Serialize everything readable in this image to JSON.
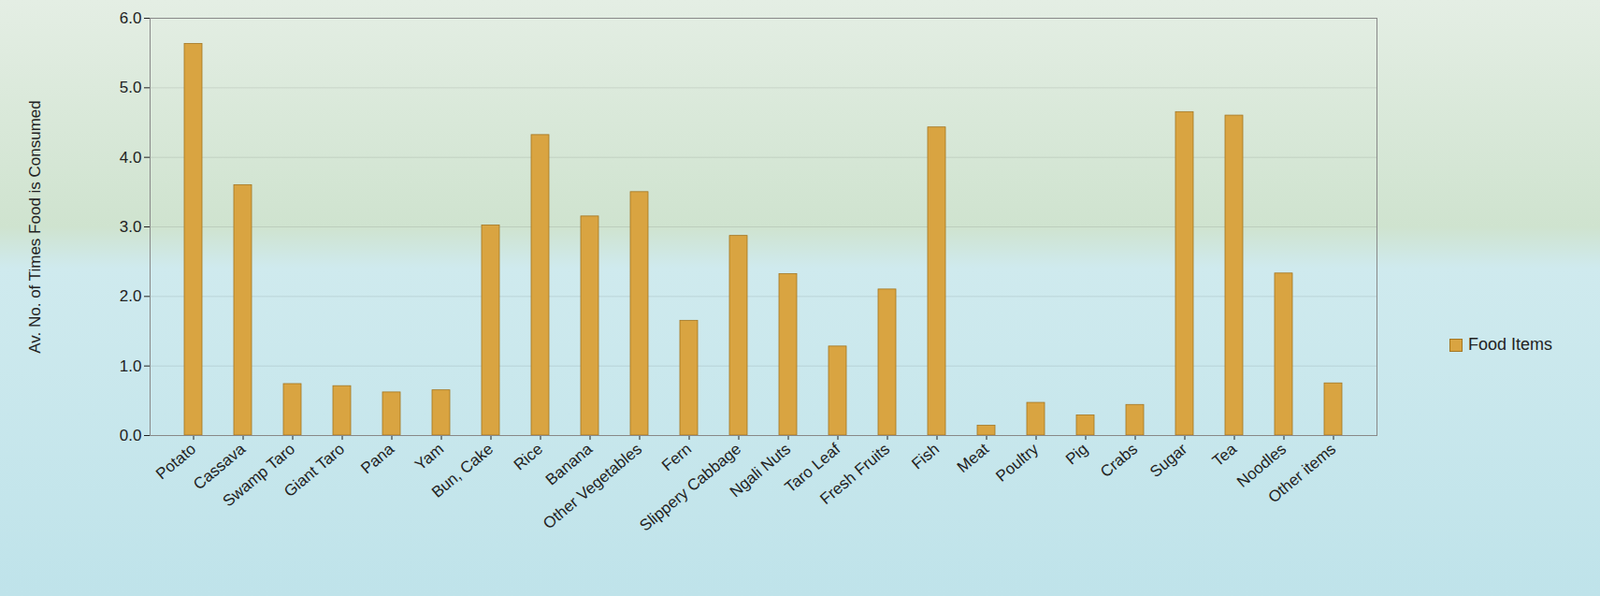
{
  "chart_data": {
    "type": "bar",
    "y_label": "Av. No. of Times Food is Consumed",
    "categories": [
      "Potato",
      "Cassava",
      "Swamp Taro",
      "Giant Taro",
      "Pana",
      "Yam",
      "Bun, Cake",
      "Rice",
      "Banana",
      "Other Vegetables",
      "Fern",
      "Slippery Cabbage",
      "Ngali Nuts",
      "Taro Leaf",
      "Fresh Fruits",
      "Fish",
      "Meat",
      "Poultry",
      "Pig",
      "Crabs",
      "Sugar",
      "Tea",
      "Noodles",
      "Other items"
    ],
    "series": [
      {
        "name": "Food Items",
        "color": "#d9a441",
        "values": [
          5.63,
          3.6,
          0.74,
          0.71,
          0.62,
          0.65,
          3.02,
          4.32,
          3.15,
          3.5,
          1.65,
          2.87,
          2.32,
          1.28,
          2.1,
          4.43,
          0.14,
          0.47,
          0.29,
          0.44,
          4.65,
          4.6,
          2.33,
          0.75
        ]
      }
    ],
    "ylim": [
      0,
      6
    ],
    "yticks": [
      0,
      1,
      2,
      3,
      4,
      5,
      6
    ],
    "grid": true,
    "legend": "right"
  }
}
